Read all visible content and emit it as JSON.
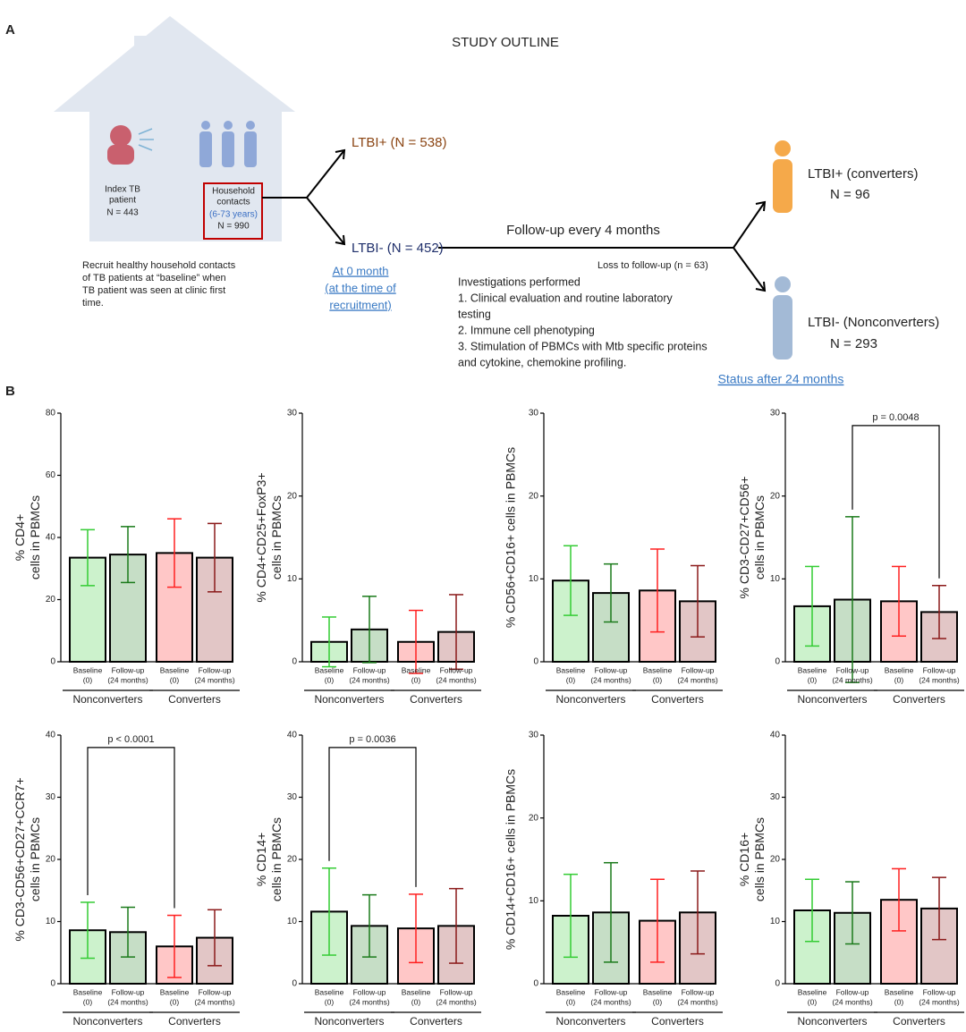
{
  "panel_a": {
    "label": "A",
    "title": "STUDY OUTLINE",
    "index_patient": [
      "Index TB",
      "patient",
      "N = 443"
    ],
    "household": [
      "Household",
      "contacts",
      "(6-73 years)",
      "N = 990"
    ],
    "recruit_note": [
      "Recruit healthy household contacts",
      "of TB patients at “baseline” when",
      "TB patient was seen at clinic first",
      "time."
    ],
    "ltbi_pos": "LTBI+ (N = 538)",
    "ltbi_neg": "LTBI- (N = 452)",
    "at_zero": [
      "At 0 month",
      "(at the time of",
      "recruitment)"
    ],
    "follow_up": "Follow-up every 4 months",
    "loss": "Loss to follow-up (n = 63)",
    "investigations": [
      "Investigations performed",
      "1. Clinical evaluation and routine laboratory",
      "testing",
      "2. Immune cell phenotyping",
      "3. Stimulation of PBMCs with Mtb specific proteins",
      "and cytokine, chemokine profiling."
    ],
    "converters": [
      "LTBI+ (converters)",
      "N = 96"
    ],
    "nonconverters": [
      "LTBI- (Nonconverters)",
      "N = 293"
    ],
    "status": "Status after 24 months"
  },
  "panel_b_label": "B",
  "chart_data": [
    {
      "type": "bar",
      "y_label": [
        "% CD4+",
        "cells in PBMCs"
      ],
      "categories": [
        [
          "Baseline",
          "(0)"
        ],
        [
          "Follow-up",
          "(24 months)"
        ],
        [
          "Baseline",
          "(0)"
        ],
        [
          "Follow-up",
          "(24 months)"
        ]
      ],
      "groups": [
        "Nonconverters",
        "Converters"
      ],
      "values": [
        33.5,
        34.5,
        35,
        33.5
      ],
      "errors": [
        9,
        9,
        11,
        11
      ],
      "colors": [
        "#33cc33",
        "#1a7a1a",
        "#ff2020",
        "#8b1a1a"
      ],
      "ylim": [
        0,
        80
      ],
      "yticks": [
        0,
        20,
        40,
        60,
        80
      ]
    },
    {
      "type": "bar",
      "y_label": [
        "% CD4+CD25+FoxP3+",
        "cells in PBMCs"
      ],
      "categories": [
        [
          "Baseline",
          "(0)"
        ],
        [
          "Follow-up",
          "(24 months)"
        ],
        [
          "Baseline",
          "(0)"
        ],
        [
          "Follow-up",
          "(24 months)"
        ]
      ],
      "groups": [
        "Nonconverters",
        "Converters"
      ],
      "values": [
        2.4,
        3.9,
        2.4,
        3.6
      ],
      "errors": [
        3,
        4,
        3.8,
        4.5
      ],
      "colors": [
        "#33cc33",
        "#1a7a1a",
        "#ff2020",
        "#8b1a1a"
      ],
      "ylim": [
        0,
        30
      ],
      "yticks": [
        0,
        10,
        20,
        30
      ]
    },
    {
      "type": "bar",
      "y_label": [
        "% CD56+CD16+ cells in PBMCs"
      ],
      "categories": [
        [
          "Baseline",
          "(0)"
        ],
        [
          "Follow-up",
          "(24 months)"
        ],
        [
          "Baseline",
          "(0)"
        ],
        [
          "Follow-up",
          "(24 months)"
        ]
      ],
      "groups": [
        "Nonconverters",
        "Converters"
      ],
      "values": [
        9.8,
        8.3,
        8.6,
        7.3
      ],
      "errors": [
        4.2,
        3.5,
        5,
        4.3
      ],
      "colors": [
        "#33cc33",
        "#1a7a1a",
        "#ff2020",
        "#8b1a1a"
      ],
      "ylim": [
        0,
        30
      ],
      "yticks": [
        0,
        10,
        20,
        30
      ]
    },
    {
      "type": "bar",
      "y_label": [
        "% CD3-CD27+CD56+",
        "cells in PBMCs"
      ],
      "categories": [
        [
          "Baseline",
          "(0)"
        ],
        [
          "Follow-up",
          "(24 months)"
        ],
        [
          "Baseline",
          "(0)"
        ],
        [
          "Follow-up",
          "(24 months)"
        ]
      ],
      "groups": [
        "Nonconverters",
        "Converters"
      ],
      "values": [
        6.7,
        7.5,
        7.3,
        6.0
      ],
      "errors": [
        4.8,
        10,
        4.2,
        3.2
      ],
      "colors": [
        "#33cc33",
        "#1a7a1a",
        "#ff2020",
        "#8b1a1a"
      ],
      "ylim": [
        0,
        30
      ],
      "yticks": [
        0,
        10,
        20,
        30
      ],
      "annotation": {
        "text": "p = 0.0048",
        "from": 1,
        "to": 3
      }
    },
    {
      "type": "bar",
      "y_label": [
        "% CD3-CD56+CD27+CCR7+",
        "cells in PBMCs"
      ],
      "categories": [
        [
          "Baseline",
          "(0)"
        ],
        [
          "Follow-up",
          "(24 months)"
        ],
        [
          "Baseline",
          "(0)"
        ],
        [
          "Follow-up",
          "(24 months)"
        ]
      ],
      "groups": [
        "Nonconverters",
        "Converters"
      ],
      "values": [
        8.6,
        8.3,
        6.0,
        7.4
      ],
      "errors": [
        4.5,
        4,
        5,
        4.5
      ],
      "colors": [
        "#33cc33",
        "#1a7a1a",
        "#ff2020",
        "#8b1a1a"
      ],
      "ylim": [
        0,
        40
      ],
      "yticks": [
        0,
        10,
        20,
        30,
        40
      ],
      "annotation": {
        "text": "p < 0.0001",
        "from": 0,
        "to": 2
      }
    },
    {
      "type": "bar",
      "y_label": [
        "% CD14+",
        "cells in PBMCs"
      ],
      "categories": [
        [
          "Baseline",
          "(0)"
        ],
        [
          "Follow-up",
          "(24 months)"
        ],
        [
          "Baseline",
          "(0)"
        ],
        [
          "Follow-up",
          "(24 months)"
        ]
      ],
      "groups": [
        "Nonconverters",
        "Converters"
      ],
      "values": [
        11.6,
        9.3,
        8.9,
        9.3
      ],
      "errors": [
        7,
        5,
        5.5,
        6
      ],
      "colors": [
        "#33cc33",
        "#1a7a1a",
        "#ff2020",
        "#8b1a1a"
      ],
      "ylim": [
        0,
        40
      ],
      "yticks": [
        0,
        10,
        20,
        30,
        40
      ],
      "annotation": {
        "text": "p = 0.0036",
        "from": 0,
        "to": 2
      }
    },
    {
      "type": "bar",
      "y_label": [
        "% CD14+CD16+ cells in PBMCs"
      ],
      "categories": [
        [
          "Baseline",
          "(0)"
        ],
        [
          "Follow-up",
          "(24 months)"
        ],
        [
          "Baseline",
          "(0)"
        ],
        [
          "Follow-up",
          "(24 months)"
        ]
      ],
      "groups": [
        "Nonconverters",
        "Converters"
      ],
      "values": [
        8.2,
        8.6,
        7.6,
        8.6
      ],
      "errors": [
        5,
        6,
        5,
        5
      ],
      "colors": [
        "#33cc33",
        "#1a7a1a",
        "#ff2020",
        "#8b1a1a"
      ],
      "ylim": [
        0,
        30
      ],
      "yticks": [
        0,
        10,
        20,
        30
      ]
    },
    {
      "type": "bar",
      "y_label": [
        "% CD16+",
        "cells in PBMCs"
      ],
      "categories": [
        [
          "Baseline",
          "(0)"
        ],
        [
          "Follow-up",
          "(24 months)"
        ],
        [
          "Baseline",
          "(0)"
        ],
        [
          "Follow-up",
          "(24 months)"
        ]
      ],
      "groups": [
        "Nonconverters",
        "Converters"
      ],
      "values": [
        11.8,
        11.4,
        13.5,
        12.1
      ],
      "errors": [
        5,
        5,
        5,
        5
      ],
      "colors": [
        "#33cc33",
        "#1a7a1a",
        "#ff2020",
        "#8b1a1a"
      ],
      "ylim": [
        0,
        40
      ],
      "yticks": [
        0,
        10,
        20,
        30,
        40
      ]
    }
  ]
}
